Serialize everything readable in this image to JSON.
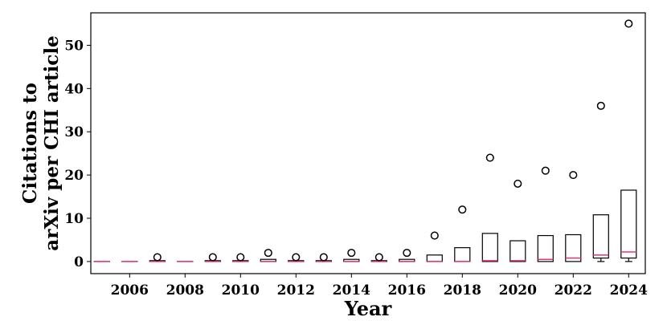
{
  "chart_data": {
    "type": "box",
    "title": "",
    "xlabel": "Year",
    "ylabel_lines": [
      "Citations to",
      "arXiv per CHI article"
    ],
    "xlim": [
      2004.6,
      2024.6
    ],
    "ylim": [
      -2.8,
      57.5
    ],
    "xticks": [
      2006,
      2008,
      2010,
      2012,
      2014,
      2016,
      2018,
      2020,
      2022,
      2024
    ],
    "yticks": [
      0,
      10,
      20,
      30,
      40,
      50
    ],
    "grid": false,
    "legend": "none",
    "colors": {
      "box": "#000000",
      "median": "#e8336d",
      "flier": "#000000"
    },
    "boxes": [
      {
        "year": 2005,
        "q1": 0,
        "median": 0,
        "q3": 0,
        "whisker_low": 0,
        "whisker_high": 0,
        "fliers": []
      },
      {
        "year": 2006,
        "q1": 0,
        "median": 0,
        "q3": 0,
        "whisker_low": 0,
        "whisker_high": 0,
        "fliers": []
      },
      {
        "year": 2007,
        "q1": 0,
        "median": 0,
        "q3": 0.2,
        "whisker_low": 0,
        "whisker_high": 0.2,
        "fliers": [
          1
        ]
      },
      {
        "year": 2008,
        "q1": 0,
        "median": 0,
        "q3": 0,
        "whisker_low": 0,
        "whisker_high": 0,
        "fliers": []
      },
      {
        "year": 2009,
        "q1": 0,
        "median": 0,
        "q3": 0.2,
        "whisker_low": 0,
        "whisker_high": 0.2,
        "fliers": [
          1
        ]
      },
      {
        "year": 2010,
        "q1": 0,
        "median": 0,
        "q3": 0.2,
        "whisker_low": 0,
        "whisker_high": 0.2,
        "fliers": [
          1
        ]
      },
      {
        "year": 2011,
        "q1": 0,
        "median": 0,
        "q3": 0.5,
        "whisker_low": 0,
        "whisker_high": 0.5,
        "fliers": [
          2
        ]
      },
      {
        "year": 2012,
        "q1": 0,
        "median": 0,
        "q3": 0.2,
        "whisker_low": 0,
        "whisker_high": 0.2,
        "fliers": [
          1
        ]
      },
      {
        "year": 2013,
        "q1": 0,
        "median": 0,
        "q3": 0.2,
        "whisker_low": 0,
        "whisker_high": 0.2,
        "fliers": [
          1
        ]
      },
      {
        "year": 2014,
        "q1": 0,
        "median": 0,
        "q3": 0.5,
        "whisker_low": 0,
        "whisker_high": 0.5,
        "fliers": [
          2
        ]
      },
      {
        "year": 2015,
        "q1": 0,
        "median": 0,
        "q3": 0.2,
        "whisker_low": 0,
        "whisker_high": 0.2,
        "fliers": [
          1
        ]
      },
      {
        "year": 2016,
        "q1": 0,
        "median": 0,
        "q3": 0.5,
        "whisker_low": 0,
        "whisker_high": 0.5,
        "fliers": [
          2
        ]
      },
      {
        "year": 2017,
        "q1": 0,
        "median": 0,
        "q3": 1.5,
        "whisker_low": 0,
        "whisker_high": 1.5,
        "fliers": [
          6
        ]
      },
      {
        "year": 2018,
        "q1": 0,
        "median": 0,
        "q3": 3.2,
        "whisker_low": 0,
        "whisker_high": 3.2,
        "fliers": [
          12
        ]
      },
      {
        "year": 2019,
        "q1": 0,
        "median": 0.2,
        "q3": 6.5,
        "whisker_low": 0,
        "whisker_high": 6.5,
        "fliers": [
          24
        ]
      },
      {
        "year": 2020,
        "q1": 0,
        "median": 0.2,
        "q3": 4.8,
        "whisker_low": 0,
        "whisker_high": 4.8,
        "fliers": [
          18
        ]
      },
      {
        "year": 2021,
        "q1": 0,
        "median": 0.5,
        "q3": 6,
        "whisker_low": 0,
        "whisker_high": 6,
        "fliers": [
          21
        ]
      },
      {
        "year": 2022,
        "q1": 0,
        "median": 0.8,
        "q3": 6.2,
        "whisker_low": 0,
        "whisker_high": 6.2,
        "fliers": [
          20
        ]
      },
      {
        "year": 2023,
        "q1": 0.8,
        "median": 1.5,
        "q3": 10.8,
        "whisker_low": 0,
        "whisker_high": 10.8,
        "fliers": [
          36
        ]
      },
      {
        "year": 2024,
        "q1": 0.8,
        "median": 2.2,
        "q3": 16.5,
        "whisker_low": 0,
        "whisker_high": 16.5,
        "fliers": [
          55
        ]
      }
    ]
  }
}
